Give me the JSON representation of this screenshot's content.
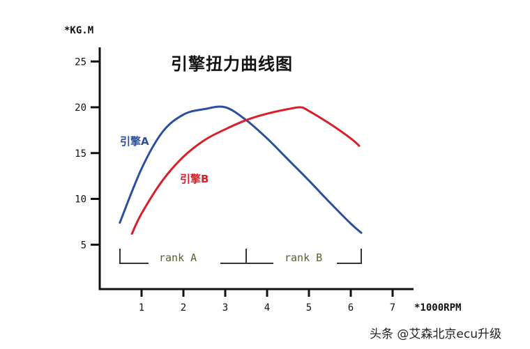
{
  "chart_data": {
    "type": "line",
    "title": "引擎扭力曲线图",
    "xlabel": "*1000RPM",
    "ylabel": "*KG.M",
    "xlim": [
      0,
      7.5
    ],
    "ylim": [
      0,
      26.5
    ],
    "x_ticks": [
      "1",
      "2",
      "3",
      "4",
      "5",
      "6",
      "7"
    ],
    "y_ticks": [
      "5",
      "10",
      "15",
      "20",
      "25"
    ],
    "grid": false,
    "legend_position": "inline labels",
    "series": [
      {
        "name": "引擎A",
        "color": "#2b4fa0",
        "x": [
          0.48,
          1.0,
          1.5,
          2.0,
          2.5,
          3.0,
          3.5,
          4.0,
          4.5,
          5.0,
          5.5,
          6.0,
          6.25
        ],
        "values": [
          7.4,
          13.3,
          17.3,
          19.2,
          19.8,
          20.0,
          18.6,
          16.6,
          14.3,
          12.0,
          9.6,
          7.3,
          6.3
        ]
      },
      {
        "name": "引擎B",
        "color": "#d9202a",
        "x": [
          0.77,
          1.0,
          1.5,
          2.0,
          2.5,
          3.0,
          3.5,
          4.0,
          4.5,
          4.8,
          5.0,
          5.5,
          6.0,
          6.2
        ],
        "values": [
          6.2,
          8.4,
          12.0,
          14.6,
          16.4,
          17.6,
          18.6,
          19.3,
          19.8,
          20.0,
          19.6,
          18.2,
          16.6,
          15.8
        ]
      }
    ],
    "annotations": [
      {
        "text": "rank A",
        "x_range": [
          0.48,
          3.5
        ]
      },
      {
        "text": "rank B",
        "x_range": [
          3.5,
          6.25
        ]
      }
    ]
  },
  "labels": {
    "title": "引擎扭力曲线图",
    "y_unit": "*KG.M",
    "x_unit": "*1000RPM",
    "series_a": "引擎A",
    "series_b": "引擎B",
    "rank_a": "rank A",
    "rank_b": "rank B"
  },
  "watermark": "头条 @艾森北京ecu升级"
}
